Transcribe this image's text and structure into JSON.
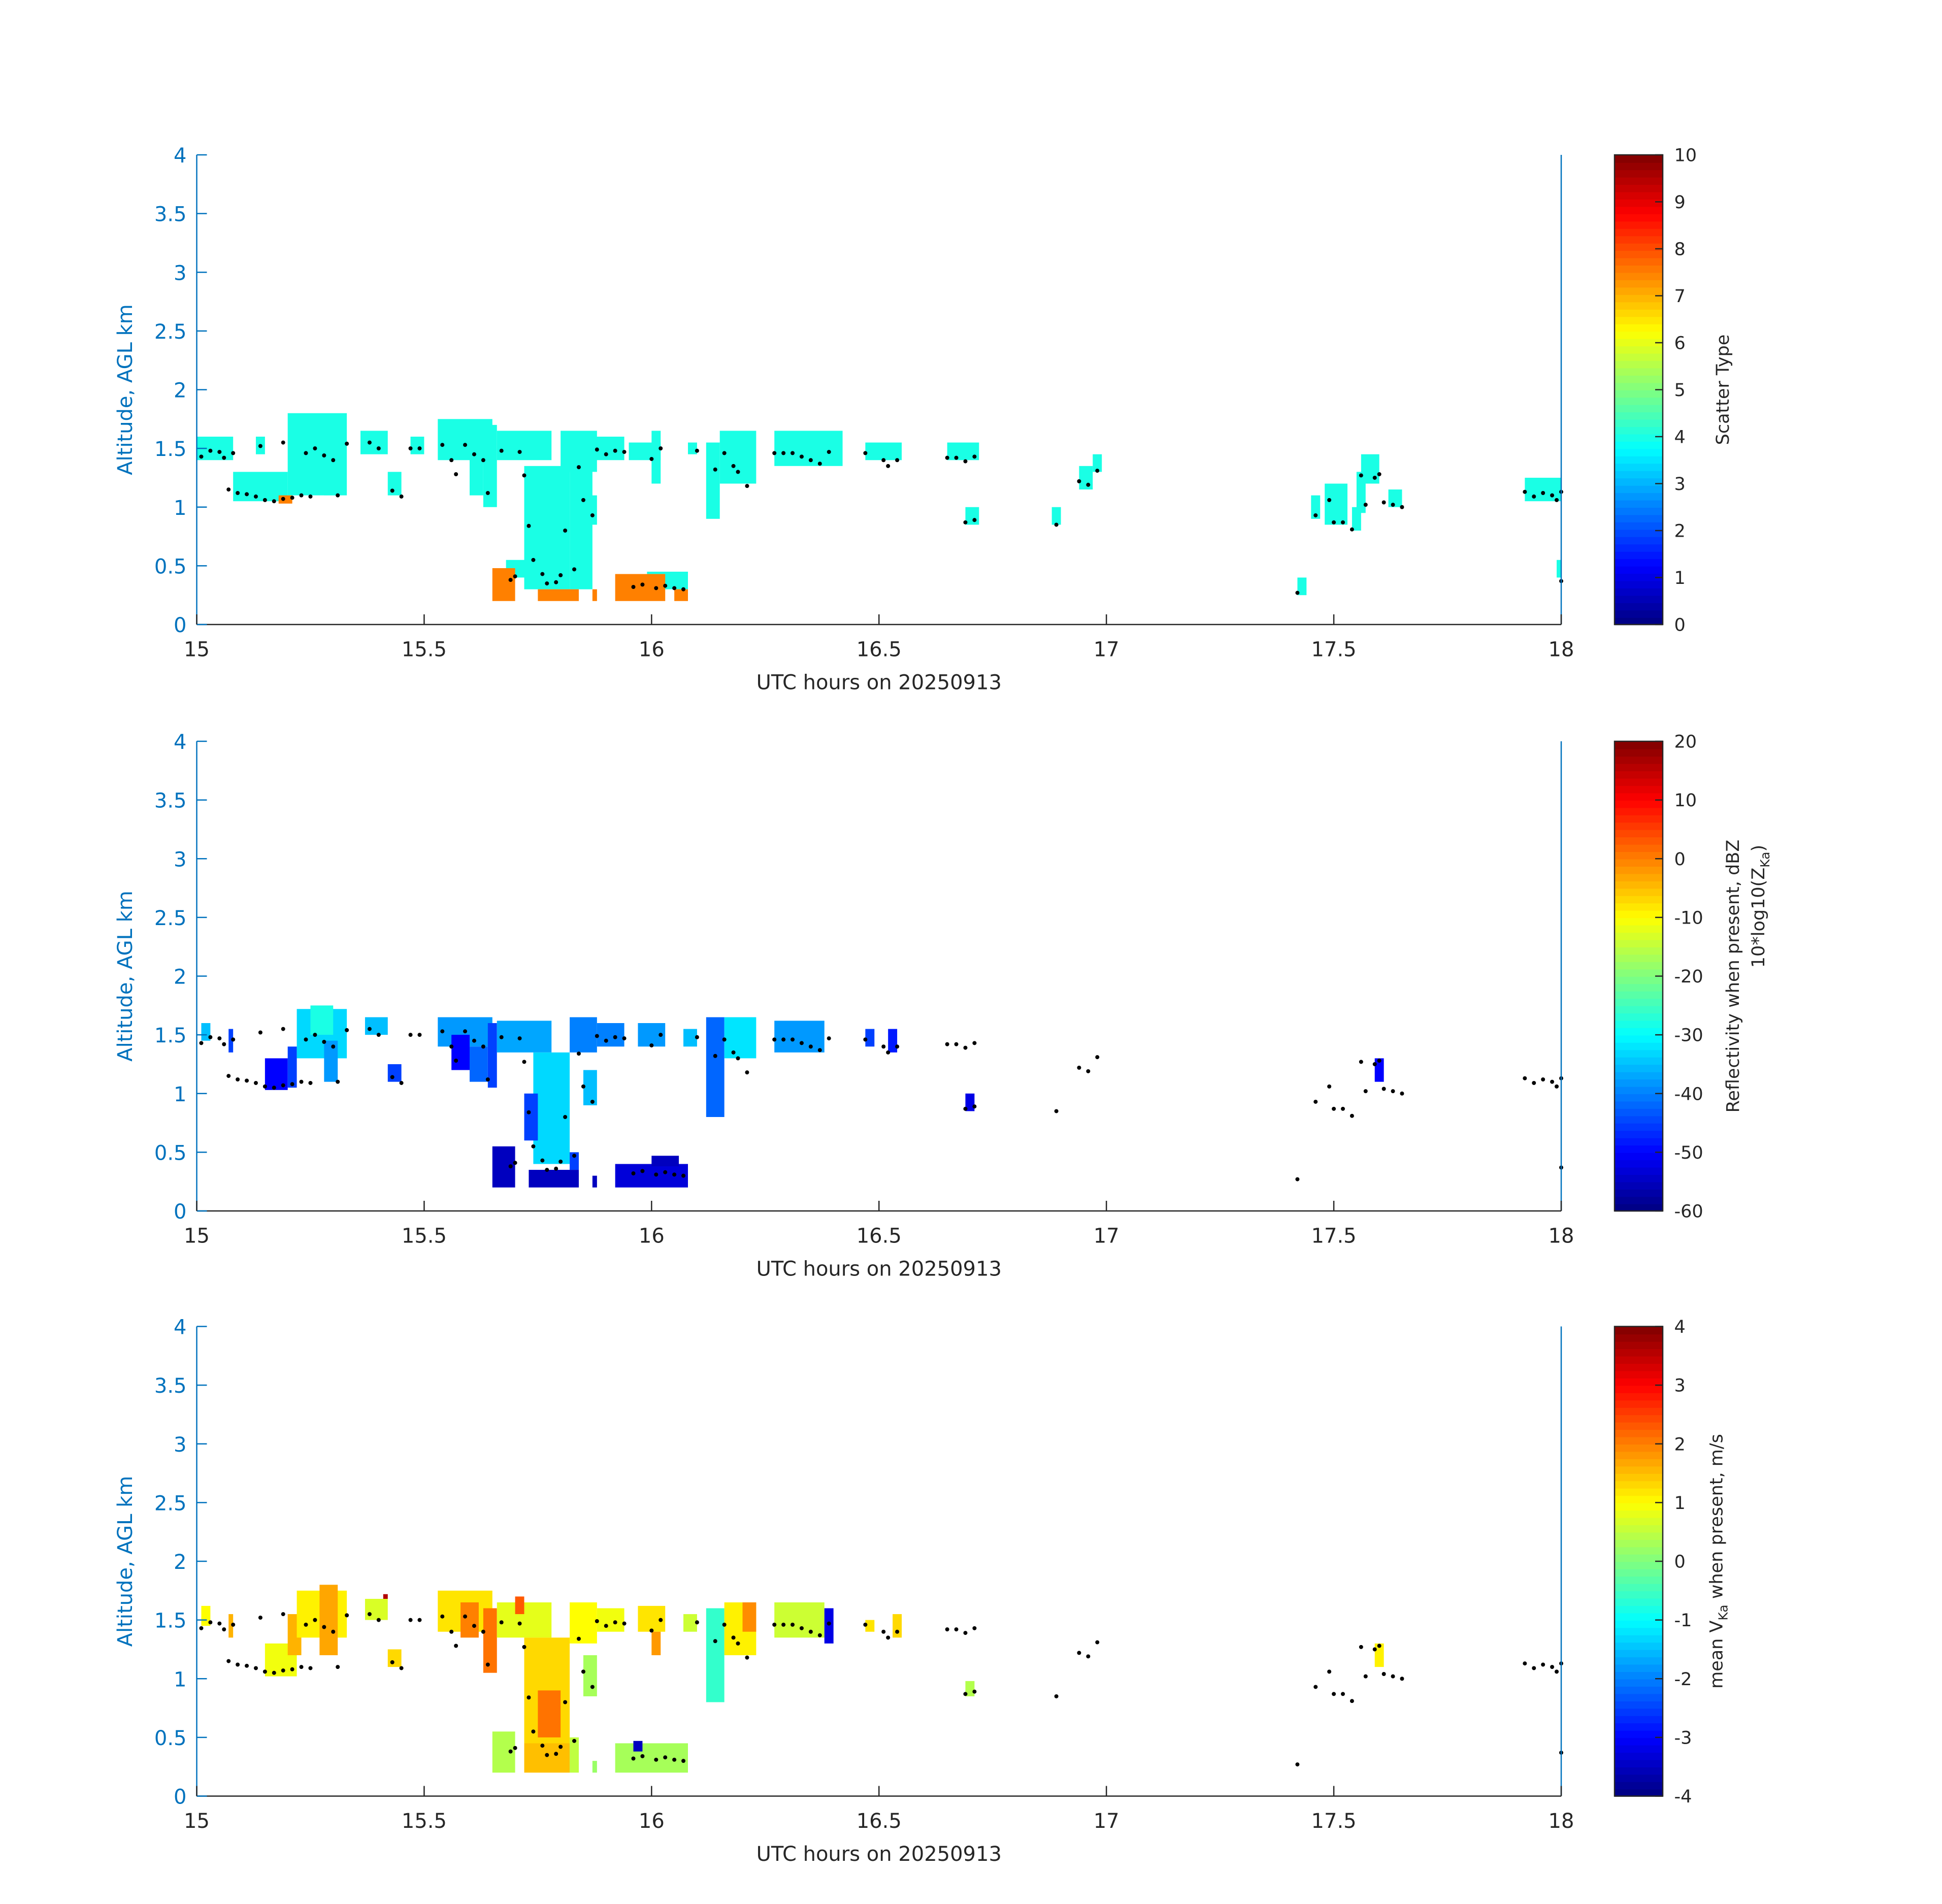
{
  "chart_data": [
    {
      "type": "heatmap",
      "xlabel": "UTC hours on 20250913",
      "ylabel": "Altitude, AGL km",
      "xlim": [
        15,
        18
      ],
      "ylim": [
        0,
        4
      ],
      "xticks": [
        "15",
        "15.5",
        "16",
        "16.5",
        "17",
        "17.5",
        "18"
      ],
      "yticks": [
        "0",
        "0.5",
        "1",
        "1.5",
        "2",
        "2.5",
        "3",
        "3.5",
        "4"
      ],
      "colormap": "jet",
      "colorbar": {
        "label": "Scatter Type",
        "label2": "",
        "range": [
          0,
          10
        ],
        "ticks": [
          "0",
          "1",
          "2",
          "3",
          "4",
          "5",
          "6",
          "7",
          "8",
          "9",
          "10"
        ]
      },
      "cells_format": "[t_start_hr, t_end_hr, alt_lo_km, alt_hi_km, value]",
      "cells": [
        [
          15.0,
          15.08,
          1.4,
          1.6,
          4
        ],
        [
          15.08,
          15.2,
          1.05,
          1.3,
          4
        ],
        [
          15.2,
          15.33,
          1.1,
          1.8,
          4
        ],
        [
          15.13,
          15.15,
          1.45,
          1.6,
          4
        ],
        [
          15.28,
          15.31,
          1.1,
          1.4,
          4
        ],
        [
          15.36,
          15.42,
          1.45,
          1.65,
          4
        ],
        [
          15.42,
          15.45,
          1.1,
          1.3,
          4
        ],
        [
          15.47,
          15.5,
          1.45,
          1.6,
          4
        ],
        [
          15.53,
          15.65,
          1.4,
          1.75,
          4
        ],
        [
          15.6,
          15.63,
          1.1,
          1.5,
          4
        ],
        [
          15.63,
          15.66,
          1.0,
          1.7,
          4
        ],
        [
          15.66,
          15.78,
          1.4,
          1.65,
          4
        ],
        [
          15.72,
          15.82,
          0.3,
          1.35,
          4
        ],
        [
          15.68,
          15.72,
          0.4,
          0.55,
          4
        ],
        [
          15.82,
          15.87,
          0.3,
          1.6,
          4
        ],
        [
          15.8,
          15.88,
          1.3,
          1.65,
          4
        ],
        [
          15.87,
          15.94,
          1.4,
          1.6,
          4
        ],
        [
          15.85,
          15.88,
          0.85,
          1.1,
          4
        ],
        [
          15.95,
          16.02,
          1.4,
          1.55,
          4
        ],
        [
          16.0,
          16.02,
          1.2,
          1.65,
          4
        ],
        [
          15.99,
          16.08,
          0.3,
          0.45,
          4
        ],
        [
          16.08,
          16.1,
          1.45,
          1.55,
          4
        ],
        [
          16.12,
          16.15,
          0.9,
          1.55,
          4
        ],
        [
          16.15,
          16.23,
          1.2,
          1.65,
          4
        ],
        [
          16.27,
          16.42,
          1.35,
          1.65,
          4
        ],
        [
          16.47,
          16.55,
          1.4,
          1.55,
          4
        ],
        [
          16.65,
          16.72,
          1.4,
          1.55,
          4
        ],
        [
          16.69,
          16.72,
          0.85,
          1.0,
          4
        ],
        [
          16.88,
          16.9,
          0.85,
          1.0,
          4
        ],
        [
          16.94,
          16.97,
          1.15,
          1.35,
          4
        ],
        [
          16.97,
          16.99,
          1.3,
          1.45,
          4
        ],
        [
          17.42,
          17.44,
          0.25,
          0.4,
          4
        ],
        [
          17.45,
          17.47,
          0.9,
          1.1,
          4
        ],
        [
          17.48,
          17.53,
          0.85,
          1.2,
          4
        ],
        [
          17.54,
          17.56,
          0.8,
          1.0,
          4
        ],
        [
          17.56,
          17.6,
          1.2,
          1.45,
          4
        ],
        [
          17.55,
          17.57,
          0.95,
          1.3,
          4
        ],
        [
          17.62,
          17.65,
          1.0,
          1.15,
          4
        ],
        [
          17.92,
          18.0,
          1.05,
          1.25,
          4
        ],
        [
          17.99,
          18.0,
          0.4,
          0.55,
          4
        ],
        [
          15.18,
          15.21,
          1.03,
          1.1,
          7.5
        ],
        [
          15.65,
          15.7,
          0.2,
          0.48,
          7.5
        ],
        [
          15.75,
          15.84,
          0.2,
          0.3,
          7.5
        ],
        [
          15.87,
          15.88,
          0.2,
          0.3,
          7.5
        ],
        [
          15.92,
          16.03,
          0.2,
          0.43,
          7.5
        ],
        [
          16.05,
          16.08,
          0.2,
          0.3,
          7.5
        ]
      ]
    },
    {
      "type": "heatmap",
      "xlabel": "UTC hours on 20250913",
      "ylabel": "Altitude, AGL km",
      "xlim": [
        15,
        18
      ],
      "ylim": [
        0,
        4
      ],
      "xticks": [
        "15",
        "15.5",
        "16",
        "16.5",
        "17",
        "17.5",
        "18"
      ],
      "yticks": [
        "0",
        "0.5",
        "1",
        "1.5",
        "2",
        "2.5",
        "3",
        "3.5",
        "4"
      ],
      "colormap": "jet",
      "colorbar": {
        "label": "Reflectivity when present, dBZ",
        "label2": "10*log10(Z",
        "label2_sub": "Ka",
        "label2_end": ")",
        "range": [
          -60,
          20
        ],
        "ticks": [
          "-60",
          "-50",
          "-40",
          "-30",
          "-20",
          "-10",
          "0",
          "10",
          "20"
        ]
      },
      "cells_format": "[t_start_hr, t_end_hr, alt_lo_km, alt_hi_km, value]",
      "cells": [
        [
          15.01,
          15.03,
          1.45,
          1.6,
          -35
        ],
        [
          15.07,
          15.08,
          1.35,
          1.55,
          -45
        ],
        [
          15.15,
          15.2,
          1.03,
          1.3,
          -50
        ],
        [
          15.2,
          15.22,
          1.05,
          1.4,
          -45
        ],
        [
          15.22,
          15.33,
          1.3,
          1.72,
          -33
        ],
        [
          15.25,
          15.3,
          1.5,
          1.75,
          -28
        ],
        [
          15.28,
          15.31,
          1.1,
          1.45,
          -38
        ],
        [
          15.37,
          15.42,
          1.5,
          1.65,
          -35
        ],
        [
          15.42,
          15.45,
          1.1,
          1.25,
          -45
        ],
        [
          15.53,
          15.65,
          1.4,
          1.65,
          -38
        ],
        [
          15.56,
          15.6,
          1.2,
          1.5,
          -50
        ],
        [
          15.6,
          15.64,
          1.1,
          1.4,
          -42
        ],
        [
          15.64,
          15.66,
          1.05,
          1.6,
          -45
        ],
        [
          15.66,
          15.78,
          1.35,
          1.62,
          -37
        ],
        [
          15.74,
          15.82,
          0.4,
          1.35,
          -33
        ],
        [
          15.72,
          15.75,
          0.6,
          1.0,
          -45
        ],
        [
          15.82,
          15.88,
          1.35,
          1.65,
          -40
        ],
        [
          15.85,
          15.88,
          0.9,
          1.2,
          -35
        ],
        [
          15.88,
          15.94,
          1.4,
          1.6,
          -40
        ],
        [
          15.97,
          16.03,
          1.4,
          1.6,
          -38
        ],
        [
          16.07,
          16.1,
          1.4,
          1.55,
          -35
        ],
        [
          16.12,
          16.16,
          0.8,
          1.65,
          -42
        ],
        [
          16.16,
          16.23,
          1.3,
          1.65,
          -32
        ],
        [
          16.27,
          16.38,
          1.35,
          1.62,
          -38
        ],
        [
          16.47,
          16.49,
          1.4,
          1.55,
          -45
        ],
        [
          16.52,
          16.54,
          1.35,
          1.55,
          -48
        ],
        [
          16.69,
          16.71,
          0.85,
          1.0,
          -52
        ],
        [
          17.59,
          17.61,
          1.1,
          1.3,
          -50
        ],
        [
          15.65,
          15.7,
          0.2,
          0.55,
          -55
        ],
        [
          15.73,
          15.84,
          0.2,
          0.35,
          -55
        ],
        [
          15.82,
          15.84,
          0.35,
          0.5,
          -45
        ],
        [
          15.92,
          16.08,
          0.2,
          0.4,
          -53
        ],
        [
          16.0,
          16.06,
          0.38,
          0.47,
          -55
        ],
        [
          15.87,
          15.88,
          0.2,
          0.3,
          -55
        ]
      ]
    },
    {
      "type": "heatmap",
      "xlabel": "UTC hours on 20250913",
      "ylabel": "Altitude, AGL km",
      "xlim": [
        15,
        18
      ],
      "ylim": [
        0,
        4
      ],
      "xticks": [
        "15",
        "15.5",
        "16",
        "16.5",
        "17",
        "17.5",
        "18"
      ],
      "yticks": [
        "0",
        "0.5",
        "1",
        "1.5",
        "2",
        "2.5",
        "3",
        "3.5",
        "4"
      ],
      "colormap": "jet",
      "colorbar": {
        "label": "mean V",
        "label_sub": "Ka",
        "label_end": " when present, m/s",
        "range": [
          -4,
          4
        ],
        "ticks": [
          "-4",
          "-3",
          "-2",
          "-1",
          "0",
          "1",
          "2",
          "3",
          "4"
        ]
      },
      "cells_format": "[t_start_hr, t_end_hr, alt_lo_km, alt_hi_km, value]",
      "cells": [
        [
          15.01,
          15.03,
          1.45,
          1.62,
          1.0
        ],
        [
          15.07,
          15.08,
          1.35,
          1.55,
          1.6
        ],
        [
          15.15,
          15.22,
          1.02,
          1.3,
          0.9
        ],
        [
          15.2,
          15.23,
          1.2,
          1.55,
          1.6
        ],
        [
          15.22,
          15.33,
          1.35,
          1.75,
          1.1
        ],
        [
          15.27,
          15.31,
          1.2,
          1.8,
          1.7
        ],
        [
          15.37,
          15.42,
          1.5,
          1.68,
          0.7
        ],
        [
          15.41,
          15.42,
          1.68,
          1.72,
          3.6
        ],
        [
          15.42,
          15.45,
          1.1,
          1.25,
          1.3
        ],
        [
          15.53,
          15.65,
          1.4,
          1.75,
          1.2
        ],
        [
          15.58,
          15.62,
          1.35,
          1.65,
          2.0
        ],
        [
          15.63,
          15.66,
          1.05,
          1.6,
          2.1
        ],
        [
          15.66,
          15.78,
          1.35,
          1.65,
          0.8
        ],
        [
          15.7,
          15.72,
          1.55,
          1.7,
          2.3
        ],
        [
          15.72,
          15.82,
          0.4,
          1.35,
          1.3
        ],
        [
          15.75,
          15.8,
          0.5,
          0.9,
          2.1
        ],
        [
          15.82,
          15.88,
          1.3,
          1.65,
          1.0
        ],
        [
          15.85,
          15.88,
          0.85,
          1.2,
          0.3
        ],
        [
          15.88,
          15.94,
          1.4,
          1.6,
          0.9
        ],
        [
          15.97,
          16.03,
          1.4,
          1.62,
          1.2
        ],
        [
          16.0,
          16.02,
          1.2,
          1.4,
          1.8
        ],
        [
          16.07,
          16.1,
          1.4,
          1.55,
          0.6
        ],
        [
          16.12,
          16.16,
          0.8,
          1.6,
          -0.6
        ],
        [
          16.16,
          16.23,
          1.2,
          1.65,
          1.1
        ],
        [
          16.2,
          16.23,
          1.4,
          1.65,
          1.9
        ],
        [
          16.27,
          16.38,
          1.35,
          1.65,
          0.6
        ],
        [
          16.38,
          16.4,
          1.3,
          1.6,
          -3.2
        ],
        [
          16.47,
          16.49,
          1.4,
          1.5,
          1.2
        ],
        [
          16.53,
          16.55,
          1.35,
          1.55,
          1.3
        ],
        [
          16.69,
          16.71,
          0.85,
          0.98,
          0.4
        ],
        [
          17.59,
          17.61,
          1.1,
          1.3,
          1.1
        ],
        [
          15.65,
          15.7,
          0.2,
          0.55,
          0.4
        ],
        [
          15.72,
          15.82,
          0.2,
          0.45,
          1.5
        ],
        [
          15.82,
          15.84,
          0.2,
          0.5,
          0.5
        ],
        [
          15.87,
          15.88,
          0.2,
          0.3,
          0.2
        ],
        [
          15.92,
          16.08,
          0.2,
          0.45,
          0.3
        ],
        [
          15.96,
          15.98,
          0.38,
          0.47,
          -3.5
        ]
      ]
    }
  ],
  "markers": {
    "color": "#000000",
    "points_format": "[t_hr, alt_km]",
    "points": [
      [
        15.01,
        1.43
      ],
      [
        15.03,
        1.48
      ],
      [
        15.05,
        1.47
      ],
      [
        15.06,
        1.42
      ],
      [
        15.08,
        1.46
      ],
      [
        15.07,
        1.15
      ],
      [
        15.09,
        1.12
      ],
      [
        15.11,
        1.11
      ],
      [
        15.13,
        1.09
      ],
      [
        15.15,
        1.06
      ],
      [
        15.17,
        1.05
      ],
      [
        15.19,
        1.07
      ],
      [
        15.21,
        1.08
      ],
      [
        15.23,
        1.1
      ],
      [
        15.25,
        1.09
      ],
      [
        15.14,
        1.52
      ],
      [
        15.19,
        1.55
      ],
      [
        15.24,
        1.46
      ],
      [
        15.26,
        1.5
      ],
      [
        15.28,
        1.44
      ],
      [
        15.3,
        1.4
      ],
      [
        15.31,
        1.1
      ],
      [
        15.33,
        1.54
      ],
      [
        15.38,
        1.55
      ],
      [
        15.4,
        1.5
      ],
      [
        15.43,
        1.14
      ],
      [
        15.45,
        1.09
      ],
      [
        15.47,
        1.5
      ],
      [
        15.49,
        1.5
      ],
      [
        15.54,
        1.53
      ],
      [
        15.56,
        1.4
      ],
      [
        15.57,
        1.28
      ],
      [
        15.59,
        1.53
      ],
      [
        15.61,
        1.45
      ],
      [
        15.63,
        1.4
      ],
      [
        15.64,
        1.12
      ],
      [
        15.67,
        1.48
      ],
      [
        15.69,
        0.38
      ],
      [
        15.7,
        0.41
      ],
      [
        15.71,
        1.47
      ],
      [
        15.72,
        1.27
      ],
      [
        15.73,
        0.84
      ],
      [
        15.74,
        0.55
      ],
      [
        15.76,
        0.43
      ],
      [
        15.77,
        0.35
      ],
      [
        15.79,
        0.36
      ],
      [
        15.8,
        0.42
      ],
      [
        15.81,
        0.8
      ],
      [
        15.83,
        0.47
      ],
      [
        15.84,
        1.34
      ],
      [
        15.85,
        1.06
      ],
      [
        15.87,
        0.93
      ],
      [
        15.88,
        1.49
      ],
      [
        15.9,
        1.45
      ],
      [
        15.92,
        1.48
      ],
      [
        15.94,
        1.47
      ],
      [
        15.96,
        0.32
      ],
      [
        15.98,
        0.34
      ],
      [
        16.0,
        1.41
      ],
      [
        16.01,
        0.31
      ],
      [
        16.03,
        0.33
      ],
      [
        16.05,
        0.31
      ],
      [
        16.07,
        0.3
      ],
      [
        16.02,
        1.5
      ],
      [
        16.1,
        1.48
      ],
      [
        16.14,
        1.32
      ],
      [
        16.16,
        1.46
      ],
      [
        16.18,
        1.35
      ],
      [
        16.19,
        1.3
      ],
      [
        16.21,
        1.18
      ],
      [
        16.27,
        1.46
      ],
      [
        16.29,
        1.46
      ],
      [
        16.31,
        1.46
      ],
      [
        16.33,
        1.43
      ],
      [
        16.35,
        1.4
      ],
      [
        16.37,
        1.37
      ],
      [
        16.39,
        1.47
      ],
      [
        16.47,
        1.46
      ],
      [
        16.51,
        1.4
      ],
      [
        16.52,
        1.35
      ],
      [
        16.54,
        1.4
      ],
      [
        16.65,
        1.42
      ],
      [
        16.67,
        1.42
      ],
      [
        16.69,
        1.39
      ],
      [
        16.71,
        1.43
      ],
      [
        16.69,
        0.87
      ],
      [
        16.71,
        0.89
      ],
      [
        16.89,
        0.85
      ],
      [
        16.94,
        1.22
      ],
      [
        16.96,
        1.19
      ],
      [
        16.98,
        1.31
      ],
      [
        17.42,
        0.27
      ],
      [
        17.46,
        0.93
      ],
      [
        17.49,
        1.06
      ],
      [
        17.5,
        0.87
      ],
      [
        17.52,
        0.87
      ],
      [
        17.54,
        0.81
      ],
      [
        17.56,
        1.27
      ],
      [
        17.57,
        1.02
      ],
      [
        17.59,
        1.25
      ],
      [
        17.6,
        1.28
      ],
      [
        17.61,
        1.04
      ],
      [
        17.63,
        1.02
      ],
      [
        17.65,
        1.0
      ],
      [
        17.92,
        1.13
      ],
      [
        17.94,
        1.09
      ],
      [
        17.96,
        1.12
      ],
      [
        17.98,
        1.1
      ],
      [
        17.99,
        1.06
      ],
      [
        18.0,
        1.13
      ],
      [
        18.0,
        0.37
      ]
    ]
  },
  "colors": {
    "axis": "#0072bd",
    "text": "#262626"
  }
}
